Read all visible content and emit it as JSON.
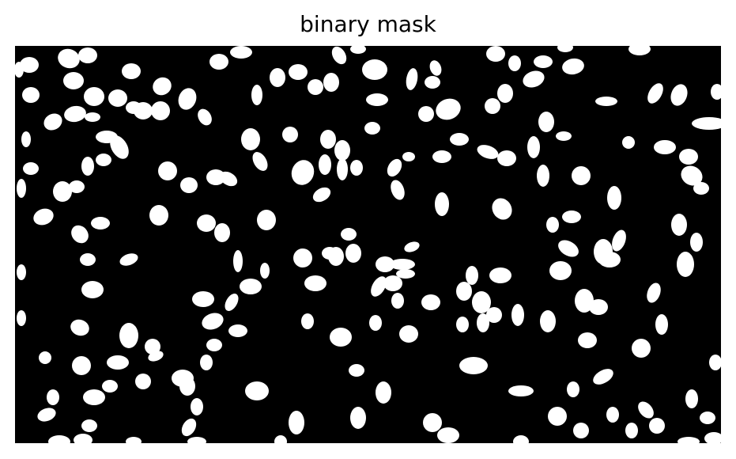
{
  "figure": {
    "title": "binary mask",
    "mask": {
      "background_color": "#000000",
      "foreground_color": "#ffffff"
    }
  }
}
